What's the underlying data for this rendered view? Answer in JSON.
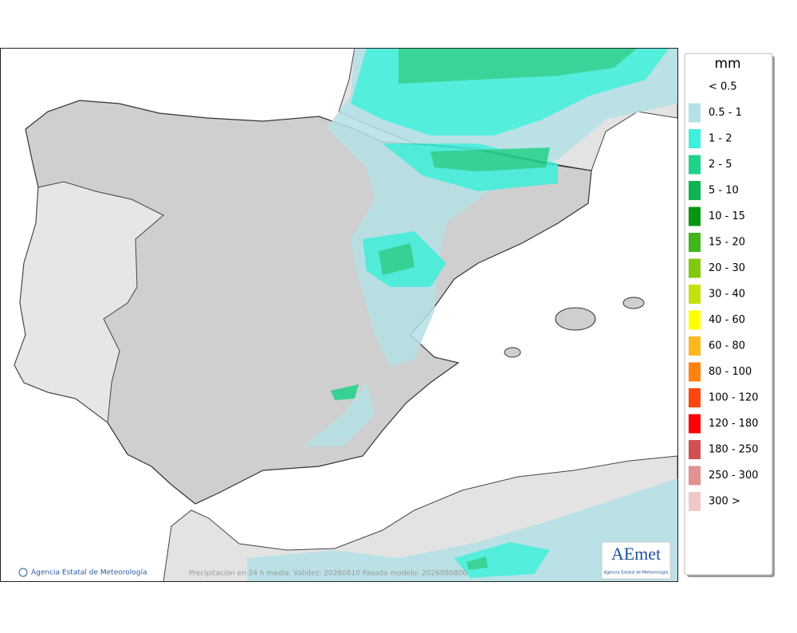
{
  "map": {
    "credit": "Agencia Estatal de Meteorología",
    "footer": "Precipitación en 24 h media. Validez: 20260810 Pasada modelo: 2026080800",
    "logo": {
      "name": "AEmet",
      "subtitle": "Agencia Estatal de Meteorología"
    }
  },
  "legend": {
    "title": "mm",
    "items": [
      {
        "label": "< 0.5"
      },
      {
        "label": "0.5 - 1",
        "color": "#b4e1e6"
      },
      {
        "label": "1 - 2",
        "color": "#3cf0dc"
      },
      {
        "label": "2 - 5",
        "color": "#1ed28c"
      },
      {
        "label": "5 - 10",
        "color": "#0fb450"
      },
      {
        "label": "10 - 15",
        "color": "#0a960f"
      },
      {
        "label": "15 - 20",
        "color": "#41b41e"
      },
      {
        "label": "20 - 30",
        "color": "#82c80f"
      },
      {
        "label": "30 - 40",
        "color": "#c3e10f"
      },
      {
        "label": "40 - 60",
        "color": "#ffff00"
      },
      {
        "label": "60 - 80",
        "color": "#ffb91e"
      },
      {
        "label": "80 - 100",
        "color": "#ff820f"
      },
      {
        "label": "100 - 120",
        "color": "#ff460f"
      },
      {
        "label": "120 - 180",
        "color": "#ff0000"
      },
      {
        "label": "180 - 250",
        "color": "#d25050"
      },
      {
        "label": "250 - 300",
        "color": "#e19191"
      },
      {
        "label": "300 >",
        "color": "#f0c8c8"
      }
    ]
  }
}
